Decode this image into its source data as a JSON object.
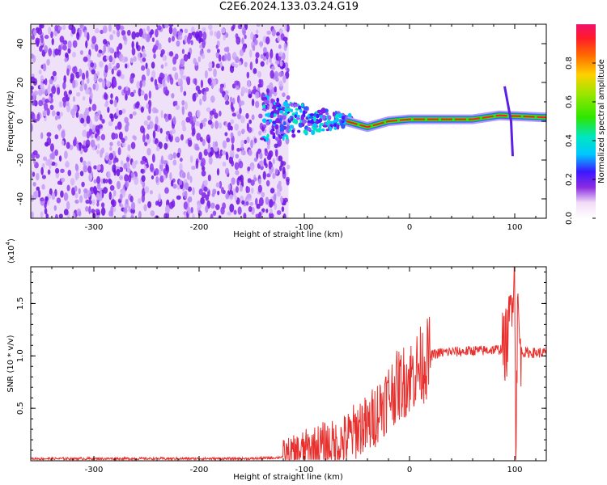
{
  "figure_title": "C2E6.2024.133.03.24.G19",
  "chart_data": [
    {
      "type": "heatmap",
      "name": "spectrogram",
      "xlabel": "Height of straight line (km)",
      "ylabel": "Frequency (Hz)",
      "xlim": [
        -360,
        130
      ],
      "ylim": [
        -50,
        50
      ],
      "x_ticks": [
        -300,
        -200,
        -100,
        0,
        100
      ],
      "x_tick_labels": [
        "-300",
        "-200",
        "-100",
        "0",
        "100"
      ],
      "y_ticks": [
        -40,
        -20,
        0,
        20,
        40
      ],
      "y_tick_labels": [
        "-40",
        "-20",
        "0",
        "20",
        "40"
      ],
      "colorbar": {
        "label": "Normalized spectral amplitude",
        "range": [
          0.0,
          1.0
        ],
        "ticks": [
          0.0,
          0.2,
          0.4,
          0.6,
          0.8
        ],
        "tick_labels": [
          "0.0",
          "0.2",
          "0.4",
          "0.6",
          "0.8"
        ],
        "colormap": "rainbow"
      },
      "features": {
        "noise_region_x": [
          -360,
          -115
        ],
        "carrier_line": [
          {
            "x": -60,
            "freq": 0
          },
          {
            "x": -40,
            "freq": -3
          },
          {
            "x": -20,
            "freq": 0
          },
          {
            "x": 0,
            "freq": 1
          },
          {
            "x": 60,
            "freq": 1
          },
          {
            "x": 85,
            "freq": 3
          },
          {
            "x": 130,
            "freq": 2
          }
        ],
        "transition_cloud_x": [
          -140,
          -55
        ],
        "spike_x": 95
      }
    },
    {
      "type": "line",
      "name": "snr",
      "xlabel": "Height of straight line (km)",
      "ylabel": "SNR (10 * v/v)",
      "y_multiplier_label": "(x10^4)",
      "xlim": [
        -360,
        130
      ],
      "ylim": [
        0,
        1.85
      ],
      "x_ticks": [
        -300,
        -200,
        -100,
        0,
        100
      ],
      "x_tick_labels": [
        "-300",
        "-200",
        "-100",
        "0",
        "100"
      ],
      "y_ticks": [
        0.5,
        1.0,
        1.5
      ],
      "y_tick_labels": [
        "0.5",
        "1.0",
        "1.5"
      ],
      "line_color": "#e8312e",
      "series": [
        {
          "x": [
            -360,
            -300,
            -200,
            -150,
            -125,
            -110,
            -100,
            -90,
            -80,
            -70,
            -60,
            -50,
            -45,
            -40,
            -35,
            -30,
            -25,
            -20,
            -15,
            -10,
            -5,
            0,
            5,
            10,
            15,
            20,
            25,
            30,
            40,
            50,
            60,
            70,
            80,
            85,
            90,
            93,
            95,
            97,
            99,
            100,
            101,
            103,
            105,
            110,
            120,
            130
          ],
          "y": [
            0.02,
            0.02,
            0.02,
            0.02,
            0.03,
            0.06,
            0.1,
            0.12,
            0.15,
            0.14,
            0.2,
            0.3,
            0.35,
            0.3,
            0.4,
            0.48,
            0.55,
            0.62,
            0.68,
            0.72,
            0.76,
            0.8,
            0.85,
            0.9,
            0.95,
            1.0,
            1.02,
            1.03,
            1.04,
            1.04,
            1.05,
            1.05,
            1.06,
            1.06,
            1.08,
            1.15,
            1.3,
            1.6,
            1.75,
            1.85,
            0.2,
            1.5,
            1.05,
            1.03,
            1.03,
            1.03
          ]
        }
      ]
    }
  ]
}
